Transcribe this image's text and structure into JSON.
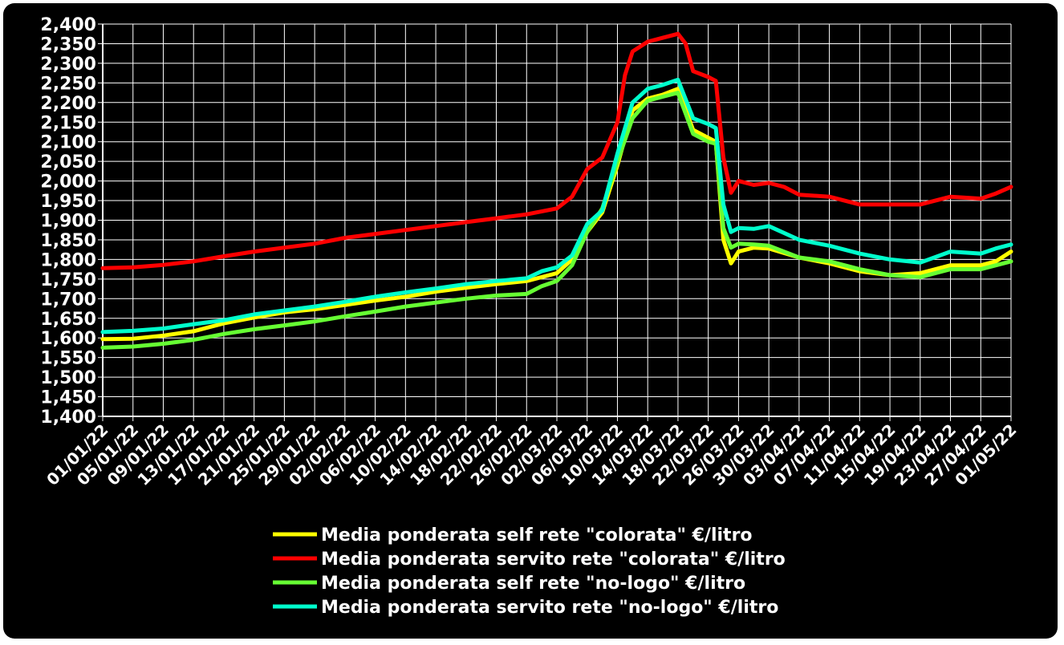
{
  "chart_data": {
    "type": "line",
    "title": "",
    "xlabel": "",
    "ylabel": "",
    "ylim": [
      1.4,
      2.4
    ],
    "y_ticks": [
      "1,400",
      "1,450",
      "1,500",
      "1,550",
      "1,600",
      "1,650",
      "1,700",
      "1,750",
      "1,800",
      "1,850",
      "1,900",
      "1,950",
      "2,000",
      "2,050",
      "2,100",
      "2,150",
      "2,200",
      "2,250",
      "2,300",
      "2,350",
      "2,400"
    ],
    "x_range": [
      "2022-01-01",
      "2022-05-01"
    ],
    "x_ticks": [
      "01/01/22",
      "05/01/22",
      "09/01/22",
      "13/01/22",
      "17/01/22",
      "21/01/22",
      "25/01/22",
      "29/01/22",
      "02/02/22",
      "06/02/22",
      "10/02/22",
      "14/02/22",
      "18/02/22",
      "22/02/22",
      "26/02/22",
      "02/03/22",
      "06/03/22",
      "10/03/22",
      "14/03/22",
      "18/03/22",
      "22/03/22",
      "26/03/22",
      "30/03/22",
      "03/04/22",
      "07/04/22",
      "11/04/22",
      "15/04/22",
      "19/04/22",
      "23/04/22",
      "27/04/22",
      "01/05/22"
    ],
    "grid": true,
    "legend_position": "bottom",
    "background": "#000000",
    "series": [
      {
        "name": "Media ponderata self rete \"colorata\" €/litro",
        "color": "#ffff00",
        "points": [
          [
            "01/01/22",
            1.597
          ],
          [
            "05/01/22",
            1.598
          ],
          [
            "09/01/22",
            1.606
          ],
          [
            "13/01/22",
            1.617
          ],
          [
            "17/01/22",
            1.637
          ],
          [
            "21/01/22",
            1.652
          ],
          [
            "25/01/22",
            1.665
          ],
          [
            "29/01/22",
            1.673
          ],
          [
            "02/02/22",
            1.684
          ],
          [
            "06/02/22",
            1.695
          ],
          [
            "10/02/22",
            1.705
          ],
          [
            "14/02/22",
            1.718
          ],
          [
            "18/02/22",
            1.728
          ],
          [
            "22/02/22",
            1.737
          ],
          [
            "26/02/22",
            1.745
          ],
          [
            "02/03/22",
            1.765
          ],
          [
            "04/03/22",
            1.8
          ],
          [
            "06/03/22",
            1.87
          ],
          [
            "08/03/22",
            1.92
          ],
          [
            "10/03/22",
            2.04
          ],
          [
            "12/03/22",
            2.18
          ],
          [
            "14/03/22",
            2.21
          ],
          [
            "16/03/22",
            2.22
          ],
          [
            "18/03/22",
            2.235
          ],
          [
            "20/03/22",
            2.13
          ],
          [
            "22/03/22",
            2.11
          ],
          [
            "23/03/22",
            2.1
          ],
          [
            "24/03/22",
            1.85
          ],
          [
            "25/03/22",
            1.79
          ],
          [
            "26/03/22",
            1.82
          ],
          [
            "28/03/22",
            1.83
          ],
          [
            "30/03/22",
            1.828
          ],
          [
            "03/04/22",
            1.805
          ],
          [
            "07/04/22",
            1.79
          ],
          [
            "11/04/22",
            1.77
          ],
          [
            "15/04/22",
            1.76
          ],
          [
            "19/04/22",
            1.765
          ],
          [
            "23/04/22",
            1.785
          ],
          [
            "27/04/22",
            1.785
          ],
          [
            "29/04/22",
            1.795
          ],
          [
            "01/05/22",
            1.82
          ]
        ]
      },
      {
        "name": "Media ponderata servito rete \"colorata\" €/litro",
        "color": "#ff0000",
        "points": [
          [
            "01/01/22",
            1.778
          ],
          [
            "05/01/22",
            1.78
          ],
          [
            "09/01/22",
            1.786
          ],
          [
            "13/01/22",
            1.795
          ],
          [
            "17/01/22",
            1.808
          ],
          [
            "21/01/22",
            1.82
          ],
          [
            "25/01/22",
            1.83
          ],
          [
            "29/01/22",
            1.84
          ],
          [
            "02/02/22",
            1.855
          ],
          [
            "06/02/22",
            1.865
          ],
          [
            "10/02/22",
            1.875
          ],
          [
            "14/02/22",
            1.885
          ],
          [
            "18/02/22",
            1.895
          ],
          [
            "22/02/22",
            1.905
          ],
          [
            "26/02/22",
            1.915
          ],
          [
            "02/03/22",
            1.93
          ],
          [
            "04/03/22",
            1.96
          ],
          [
            "06/03/22",
            2.03
          ],
          [
            "08/03/22",
            2.06
          ],
          [
            "10/03/22",
            2.15
          ],
          [
            "11/03/22",
            2.27
          ],
          [
            "12/03/22",
            2.33
          ],
          [
            "14/03/22",
            2.355
          ],
          [
            "16/03/22",
            2.365
          ],
          [
            "18/03/22",
            2.375
          ],
          [
            "19/03/22",
            2.35
          ],
          [
            "20/03/22",
            2.28
          ],
          [
            "22/03/22",
            2.265
          ],
          [
            "23/03/22",
            2.255
          ],
          [
            "24/03/22",
            2.06
          ],
          [
            "25/03/22",
            1.97
          ],
          [
            "26/03/22",
            2.0
          ],
          [
            "28/03/22",
            1.99
          ],
          [
            "30/03/22",
            1.995
          ],
          [
            "01/04/22",
            1.985
          ],
          [
            "03/04/22",
            1.965
          ],
          [
            "07/04/22",
            1.96
          ],
          [
            "11/04/22",
            1.94
          ],
          [
            "15/04/22",
            1.94
          ],
          [
            "19/04/22",
            1.94
          ],
          [
            "23/04/22",
            1.96
          ],
          [
            "27/04/22",
            1.955
          ],
          [
            "29/04/22",
            1.968
          ],
          [
            "01/05/22",
            1.985
          ]
        ]
      },
      {
        "name": "Media ponderata self rete \"no-logo\" €/litro",
        "color": "#66ff33",
        "points": [
          [
            "01/01/22",
            1.575
          ],
          [
            "05/01/22",
            1.578
          ],
          [
            "09/01/22",
            1.585
          ],
          [
            "13/01/22",
            1.595
          ],
          [
            "17/01/22",
            1.61
          ],
          [
            "21/01/22",
            1.622
          ],
          [
            "25/01/22",
            1.632
          ],
          [
            "29/01/22",
            1.642
          ],
          [
            "02/02/22",
            1.655
          ],
          [
            "06/02/22",
            1.667
          ],
          [
            "10/02/22",
            1.68
          ],
          [
            "14/02/22",
            1.69
          ],
          [
            "18/02/22",
            1.7
          ],
          [
            "22/02/22",
            1.708
          ],
          [
            "26/02/22",
            1.712
          ],
          [
            "28/02/22",
            1.732
          ],
          [
            "02/03/22",
            1.745
          ],
          [
            "04/03/22",
            1.785
          ],
          [
            "06/03/22",
            1.87
          ],
          [
            "08/03/22",
            1.93
          ],
          [
            "10/03/22",
            2.05
          ],
          [
            "12/03/22",
            2.16
          ],
          [
            "14/03/22",
            2.205
          ],
          [
            "16/03/22",
            2.215
          ],
          [
            "18/03/22",
            2.225
          ],
          [
            "20/03/22",
            2.12
          ],
          [
            "22/03/22",
            2.1
          ],
          [
            "23/03/22",
            2.095
          ],
          [
            "24/03/22",
            1.88
          ],
          [
            "25/03/22",
            1.83
          ],
          [
            "26/03/22",
            1.84
          ],
          [
            "28/03/22",
            1.838
          ],
          [
            "30/03/22",
            1.835
          ],
          [
            "03/04/22",
            1.805
          ],
          [
            "07/04/22",
            1.795
          ],
          [
            "11/04/22",
            1.775
          ],
          [
            "15/04/22",
            1.76
          ],
          [
            "19/04/22",
            1.755
          ],
          [
            "23/04/22",
            1.775
          ],
          [
            "27/04/22",
            1.775
          ],
          [
            "01/05/22",
            1.795
          ]
        ]
      },
      {
        "name": "Media ponderata servito rete \"no-logo\" €/litro",
        "color": "#00ffcc",
        "points": [
          [
            "01/01/22",
            1.615
          ],
          [
            "05/01/22",
            1.618
          ],
          [
            "09/01/22",
            1.624
          ],
          [
            "13/01/22",
            1.635
          ],
          [
            "17/01/22",
            1.645
          ],
          [
            "21/01/22",
            1.66
          ],
          [
            "25/01/22",
            1.67
          ],
          [
            "29/01/22",
            1.68
          ],
          [
            "02/02/22",
            1.692
          ],
          [
            "06/02/22",
            1.705
          ],
          [
            "10/02/22",
            1.716
          ],
          [
            "14/02/22",
            1.726
          ],
          [
            "18/02/22",
            1.737
          ],
          [
            "22/02/22",
            1.745
          ],
          [
            "26/02/22",
            1.752
          ],
          [
            "28/02/22",
            1.77
          ],
          [
            "02/03/22",
            1.78
          ],
          [
            "04/03/22",
            1.81
          ],
          [
            "06/03/22",
            1.89
          ],
          [
            "08/03/22",
            1.925
          ],
          [
            "10/03/22",
            2.07
          ],
          [
            "12/03/22",
            2.2
          ],
          [
            "14/03/22",
            2.235
          ],
          [
            "16/03/22",
            2.245
          ],
          [
            "18/03/22",
            2.258
          ],
          [
            "20/03/22",
            2.16
          ],
          [
            "22/03/22",
            2.145
          ],
          [
            "23/03/22",
            2.135
          ],
          [
            "24/03/22",
            1.94
          ],
          [
            "25/03/22",
            1.87
          ],
          [
            "26/03/22",
            1.88
          ],
          [
            "28/03/22",
            1.878
          ],
          [
            "30/03/22",
            1.885
          ],
          [
            "03/04/22",
            1.85
          ],
          [
            "07/04/22",
            1.835
          ],
          [
            "11/04/22",
            1.815
          ],
          [
            "15/04/22",
            1.8
          ],
          [
            "19/04/22",
            1.792
          ],
          [
            "23/04/22",
            1.82
          ],
          [
            "27/04/22",
            1.815
          ],
          [
            "29/04/22",
            1.828
          ],
          [
            "01/05/22",
            1.838
          ]
        ]
      }
    ]
  }
}
